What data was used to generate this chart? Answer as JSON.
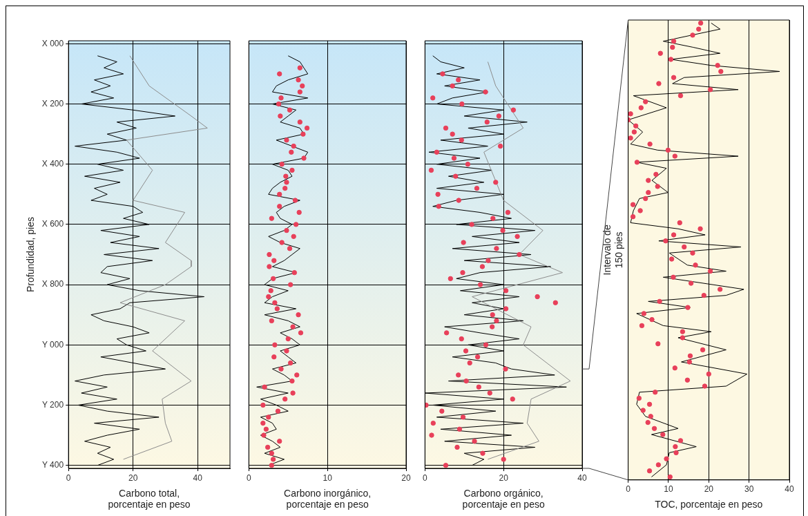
{
  "chart_data": [
    {
      "type": "line",
      "orientation": "horizontal",
      "xlabel": "Carbono total, porcentaje en peso",
      "ylabel": "Profundidad, pies",
      "categories": [
        "X 000",
        null,
        null,
        null,
        null,
        null,
        null,
        null,
        null,
        null,
        "X 200",
        null,
        null,
        null,
        null,
        null,
        null,
        null,
        null,
        null,
        "X 400",
        null,
        null,
        null,
        null,
        null,
        null,
        null,
        null,
        null,
        "X 600",
        null,
        null,
        null,
        null,
        null,
        null,
        null,
        null,
        null,
        "X 800",
        null,
        null,
        null,
        null,
        null,
        null,
        null,
        null,
        null,
        "Y 000",
        null,
        null,
        null,
        null,
        null,
        null,
        null,
        null,
        null,
        "Y 200",
        null,
        null,
        null,
        null,
        null,
        null,
        null,
        null,
        null,
        "Y 400"
      ],
      "xlim": [
        0,
        50
      ],
      "xticks": [
        0,
        20,
        40
      ],
      "grid": true,
      "series": [
        {
          "type": "line",
          "color": "#8c8c8c",
          "values": [
            null,
            null,
            19,
            null,
            null,
            null,
            null,
            25,
            null,
            null,
            null,
            null,
            38,
            null,
            43,
            null,
            18,
            null,
            null,
            null,
            null,
            26,
            null,
            null,
            null,
            null,
            20,
            null,
            36,
            null,
            null,
            null,
            null,
            30,
            null,
            null,
            38,
            38,
            null,
            null,
            30,
            null,
            null,
            16,
            null,
            null,
            36,
            null,
            null,
            null,
            null,
            26,
            null,
            null,
            null,
            null,
            38,
            null,
            null,
            29,
            null,
            null,
            null,
            30,
            null,
            null,
            32,
            null,
            null,
            17,
            null
          ]
        },
        {
          "type": "line",
          "color": "#000000",
          "values": [
            null,
            null,
            9,
            15,
            11,
            17,
            8,
            13,
            7,
            14,
            4,
            20,
            33,
            15,
            21,
            12,
            18,
            2,
            15,
            22,
            9,
            17,
            5,
            16,
            8,
            12,
            7,
            20,
            23,
            17,
            25,
            10,
            22,
            13,
            28,
            11,
            26,
            12,
            10,
            19,
            12,
            22,
            42,
            19,
            16,
            7,
            11,
            20,
            25,
            15,
            18,
            24,
            10,
            20,
            30,
            11,
            2,
            12,
            4,
            15,
            3,
            12,
            28,
            8,
            22,
            12,
            5,
            13,
            9,
            14,
            9
          ]
        }
      ]
    },
    {
      "type": "line",
      "orientation": "horizontal",
      "xlabel": "Carbono inorgánico, porcentaje en peso",
      "categories": [
        null,
        null,
        null,
        null,
        null,
        null,
        null,
        null,
        null,
        null,
        null,
        null,
        null,
        null,
        null,
        null,
        null,
        null,
        null,
        null,
        null,
        null,
        null,
        null,
        null,
        null,
        null,
        null,
        null,
        null,
        null,
        null,
        null,
        null,
        null,
        null,
        null,
        null,
        null,
        null,
        null,
        null,
        null,
        null,
        null,
        null,
        null,
        null,
        null,
        null,
        null,
        null,
        null,
        null,
        null,
        null,
        null,
        null,
        null,
        null,
        null,
        null,
        null,
        null,
        null,
        null,
        null,
        null,
        null,
        null,
        null
      ],
      "xlim": [
        0,
        20
      ],
      "xticks": [
        0,
        10,
        20
      ],
      "tick_labels": "x",
      "grid": true,
      "series": [
        {
          "type": "line",
          "color": "#000000",
          "values": [
            null,
            null,
            5,
            6.5,
            7,
            7.5,
            5,
            3.5,
            3,
            7.5,
            3,
            6,
            5,
            4,
            6.5,
            7,
            3.5,
            5.5,
            7.5,
            7,
            3,
            5,
            5.5,
            4,
            3,
            2.5,
            6.5,
            4.5,
            3.5,
            4,
            5.5,
            4.5,
            2.5,
            4,
            6.5,
            5.5,
            4.5,
            3,
            6,
            3,
            2,
            5,
            3,
            2,
            6,
            2,
            5,
            6.5,
            4,
            5.5,
            6.5,
            4,
            5,
            6,
            3,
            4.5,
            5.5,
            1,
            5,
            1.5,
            3.5,
            5,
            1.5,
            3,
            3.5,
            1.5,
            3,
            4,
            2,
            4.5,
            2.5
          ]
        },
        {
          "type": "scatter",
          "marker": "circle",
          "color": "#e8405a",
          "values": [
            null,
            null,
            null,
            null,
            6.5,
            3.9,
            6.3,
            6.8,
            6.5,
            4.1,
            3.8,
            5.2,
            4.0,
            6.5,
            7.4,
            6.9,
            4.8,
            5.7,
            5.4,
            7.0,
            4.2,
            5.5,
            4.7,
            4.8,
            4.6,
            3.9,
            5.9,
            3.9,
            6.4,
            2.9,
            6.0,
            4.8,
            5.7,
            4.2,
            5.2,
            2.6,
            3.2,
            2.6,
            5.8,
            3.1,
            5.3,
            2.8,
            2.5,
            3.3,
            3.6,
            6.3,
            2.9,
            5.6,
            6.6,
            5.0,
            3.3,
            4.8,
            3.2,
            5.3,
            4.1,
            6.1,
            5.5,
            2.0,
            5.6,
            4.6,
            1.8,
            3.7,
            2.5,
            1.8,
            2.2,
            1.9,
            3.9,
            2.4,
            2.9,
            3.1,
            2.9
          ]
        }
      ]
    },
    {
      "type": "line",
      "orientation": "horizontal",
      "xlabel": "Carbono orgánico, porcentaje en peso",
      "categories": [
        null,
        null,
        null,
        null,
        null,
        null,
        null,
        null,
        null,
        null,
        null,
        null,
        null,
        null,
        null,
        null,
        null,
        null,
        null,
        null,
        null,
        null,
        null,
        null,
        null,
        null,
        null,
        null,
        null,
        null,
        null,
        null,
        null,
        null,
        null,
        null,
        null,
        null,
        null,
        null,
        null,
        null,
        null,
        null,
        null,
        null,
        null,
        null,
        null,
        null,
        null,
        null,
        null,
        null,
        null,
        null,
        null,
        null,
        null,
        null,
        null,
        null,
        null,
        null,
        null,
        null,
        null,
        null,
        null,
        null,
        null
      ],
      "xlim": [
        0,
        40
      ],
      "xticks": [
        0,
        20,
        40
      ],
      "tick_labels": "x",
      "grid": true,
      "series": [
        {
          "type": "line",
          "color": "#8c8c8c",
          "values": [
            null,
            null,
            null,
            16,
            null,
            null,
            null,
            18,
            null,
            null,
            null,
            null,
            null,
            null,
            25,
            null,
            null,
            null,
            15,
            null,
            null,
            null,
            null,
            null,
            null,
            null,
            20,
            null,
            null,
            null,
            null,
            30,
            null,
            null,
            null,
            24,
            null,
            null,
            35,
            null,
            null,
            null,
            12,
            null,
            null,
            null,
            null,
            27,
            null,
            null,
            25,
            null,
            null,
            null,
            null,
            null,
            37,
            null,
            null,
            27,
            null,
            null,
            null,
            26,
            null,
            null,
            29,
            null,
            null,
            16,
            null
          ]
        },
        {
          "type": "line",
          "color": "#000000",
          "values": [
            null,
            null,
            2,
            4,
            10,
            3,
            14,
            5,
            16,
            7,
            3,
            20,
            10,
            26,
            11,
            20,
            4,
            16,
            1,
            14,
            3,
            17,
            6,
            15,
            3,
            20,
            8,
            2,
            14,
            22,
            8,
            28,
            12,
            24,
            7,
            27,
            10,
            32,
            14,
            8,
            20,
            9,
            24,
            12,
            20,
            10,
            25,
            5,
            14,
            24,
            11,
            20,
            7,
            18,
            22,
            33,
            6,
            36,
            0,
            20,
            2,
            18,
            3,
            25,
            4,
            22,
            5,
            28,
            10,
            15,
            12
          ]
        },
        {
          "type": "scatter",
          "marker": "circle",
          "color": "#e8405a",
          "values": [
            null,
            null,
            null,
            null,
            null,
            4.5,
            8.5,
            7,
            15.4,
            2,
            9.4,
            22.5,
            18.8,
            15.8,
            5.3,
            7,
            9.3,
            19.2,
            3,
            7.4,
            10.9,
            1.6,
            7.8,
            18,
            13.2,
            3.3,
            8.6,
            3.5,
            21.1,
            17.3,
            11.9,
            19.8,
            23.5,
            9.8,
            18.2,
            24,
            16.1,
            14.6,
            9.6,
            6.5,
            14.1,
            20.6,
            28.6,
            33.2,
            20.6,
            17.2,
            18.2,
            17.1,
            5.5,
            9.3,
            15.5,
            10.4,
            13.4,
            11.4,
            20.5,
            8.5,
            10.5,
            13.7,
            16.5,
            22.3,
            0.3,
            4.3,
            9.7,
            2.1,
            8.8,
            1.7,
            12.6,
            8.2,
            14.7,
            20,
            5.3
          ]
        }
      ]
    },
    {
      "type": "line",
      "orientation": "horizontal",
      "xlabel": "TOC, porcentaje en peso",
      "ylabel": "Intervalo de 150 pies",
      "categories": [
        null,
        null,
        null,
        null,
        null,
        null,
        null,
        null,
        null,
        null,
        null,
        null,
        null,
        null,
        null,
        null,
        null,
        null,
        null,
        null,
        null,
        null,
        null,
        null,
        null,
        null,
        null,
        null,
        null,
        null,
        null,
        null,
        null,
        null,
        null,
        null,
        null,
        null,
        null,
        null,
        null,
        null,
        null,
        null,
        null,
        null,
        null,
        null,
        null,
        null,
        null,
        null,
        null,
        null,
        null,
        null,
        null,
        null,
        null,
        null,
        null,
        null,
        null,
        null,
        null,
        null,
        null,
        null,
        null,
        null,
        null,
        null,
        null,
        null,
        null,
        null
      ],
      "xlim": [
        0,
        40
      ],
      "xticks": [
        0,
        10,
        20,
        30,
        40
      ],
      "tick_labels": "x",
      "grid": "x",
      "series": [
        {
          "type": "line",
          "color": "#000000",
          "values": [
            20.6,
            22.8,
            null,
            8.7,
            16.1,
            22.8,
            10.6,
            20.6,
            37.6,
            13.9,
            11,
            27.3,
            1.3,
            null,
            9.5,
            null,
            0,
            null,
            3.6,
            null,
            0.6,
            7.3,
            27.3,
            2.1,
            9.5,
            null,
            5.9,
            null,
            9.9,
            2.8,
            null,
            1.3,
            null,
            0.6,
            12.4,
            19.1,
            7.6,
            28,
            10.2,
            null,
            14.7,
            24.3,
            8.7,
            null,
            28.7,
            24.3,
            5,
            15.4,
            2.1,
            null,
            8.7,
            20.6,
            12.4,
            null,
            24.3,
            null,
            13.2,
            null,
            29.5,
            null,
            24.3,
            2.8,
            null,
            2.1,
            null,
            4.3,
            null,
            12.4,
            5.8,
            null,
            16.9,
            10.2,
            null,
            9.5,
            null,
            5.8
          ]
        },
        {
          "type": "scatter",
          "marker": "circle",
          "color": "#e8405a",
          "values": [
            18,
            17.5,
            16,
            11.3,
            11,
            8,
            10.6,
            22.2,
            23,
            11.3,
            7.6,
            20.4,
            13,
            4.3,
            3.2,
            0.6,
            0,
            1.9,
            1.5,
            0.6,
            5.4,
            9.9,
            11.6,
            2.2,
            null,
            6.9,
            5,
            7.3,
            5,
            4.3,
            1.2,
            3,
            1.2,
            12.8,
            17.9,
            11.3,
            9.3,
            13.9,
            16,
            10.8,
            16.7,
            20.4,
            11.2,
            15.6,
            22.8,
            18.8,
            7.8,
            14.8,
            3.9,
            5.9,
            3.4,
            13.5,
            13.5,
            7.4,
            18.5,
            15.4,
            15.2,
            11.6,
            20,
            14.7,
            19,
            6.7,
            2.7,
            5.3,
            3.7,
            5.6,
            4.9,
            6.5,
            8.6,
            13,
            11.7,
            11.9,
            9.5,
            7.5,
            5.3,
            10.4
          ]
        }
      ]
    }
  ]
}
